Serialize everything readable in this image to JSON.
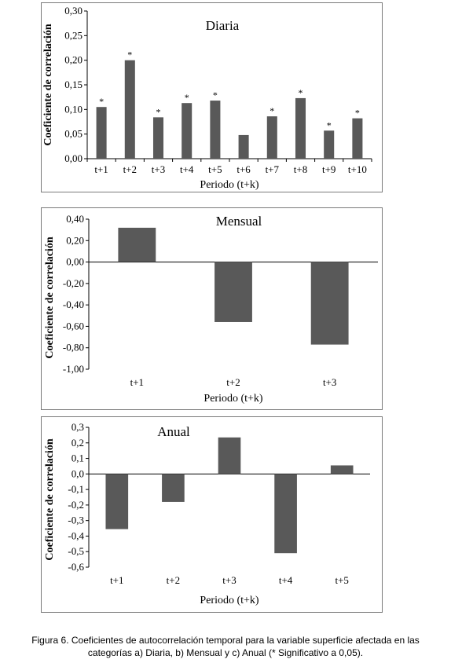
{
  "chart_data": [
    {
      "type": "bar",
      "title": "Diaria",
      "xlabel": "Periodo (t+k)",
      "ylabel": "Coeficiente de correlación",
      "categories": [
        "t+1",
        "t+2",
        "t+3",
        "t+4",
        "t+5",
        "t+6",
        "t+7",
        "t+8",
        "t+9",
        "t+10"
      ],
      "values": [
        0.105,
        0.2,
        0.084,
        0.113,
        0.118,
        0.048,
        0.086,
        0.123,
        0.057,
        0.082
      ],
      "annotations": [
        "*",
        "*",
        "*",
        "*",
        "*",
        "",
        "*",
        "*",
        "*",
        "*"
      ],
      "ylim": [
        0,
        0.3
      ],
      "yticks": [
        "0,00",
        "0,05",
        "0,10",
        "0,15",
        "0,20",
        "0,25",
        "0,30"
      ],
      "bar_color": "#595959"
    },
    {
      "type": "bar",
      "title": "Mensual",
      "xlabel": "Periodo (t+k)",
      "ylabel": "Coeficiente de correlación",
      "categories": [
        "t+1",
        "t+2",
        "t+3"
      ],
      "values": [
        0.32,
        -0.56,
        -0.77
      ],
      "ylim": [
        -1.0,
        0.4
      ],
      "yticks": [
        "-1,00",
        "-0,80",
        "-0,60",
        "-0,40",
        "-0,20",
        "0,00",
        "0,20",
        "0,40"
      ],
      "bar_color": "#595959"
    },
    {
      "type": "bar",
      "title": "Anual",
      "xlabel": "Periodo (t+k)",
      "ylabel": "Coeficiente de correlación",
      "categories": [
        "t+1",
        "t+2",
        "t+3",
        "t+4",
        "t+5"
      ],
      "values": [
        -0.355,
        -0.18,
        0.235,
        -0.51,
        0.055
      ],
      "ylim": [
        -0.6,
        0.3
      ],
      "yticks": [
        "-0,6",
        "-0,5",
        "-0,4",
        "-0,3",
        "-0,2",
        "-0,1",
        "0,0",
        "0,1",
        "0,2",
        "0,3"
      ],
      "bar_color": "#595959"
    }
  ],
  "caption": {
    "line1": "Figura 6. Coeficientes de autocorrelación temporal para la variable superficie afectada en las",
    "line2": "categorías a) Diaria, b) Mensual y c) Anual (* Significativo a 0,05)."
  }
}
